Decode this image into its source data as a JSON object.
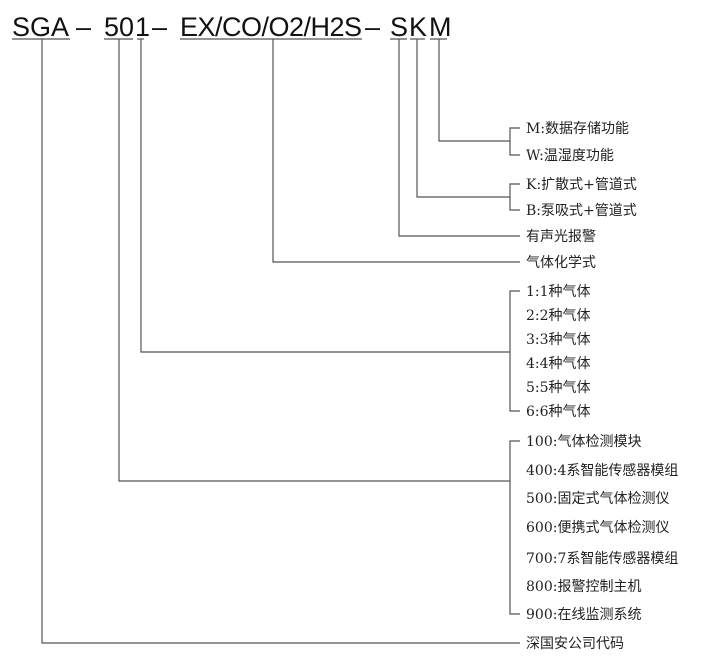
{
  "code": {
    "parts": [
      "SGA",
      "–",
      "50",
      "1",
      "–",
      "EX/CO/O2/H2S",
      "–",
      "S",
      "K",
      "M"
    ]
  },
  "labels": {
    "company": "深国安公司代码",
    "product_types": [
      "100:气体检测模块",
      "400:4系智能传感器模组",
      "500:固定式气体检测仪",
      "600:便携式气体检测仪",
      "700:7系智能传感器模组",
      "800:报警控制主机",
      "900:在线监测系统"
    ],
    "gas_counts": [
      "1:1种气体",
      "2:2种气体",
      "3:3种气体",
      "4:4种气体",
      "5:5种气体",
      "6:6种气体"
    ],
    "gas_formula": "气体化学式",
    "alarm": "有声光报警",
    "sampling": [
      "K:扩散式+管道式",
      "B:泵吸式+管道式"
    ],
    "functions": [
      "M:数据存储功能",
      "W:温湿度功能"
    ]
  }
}
